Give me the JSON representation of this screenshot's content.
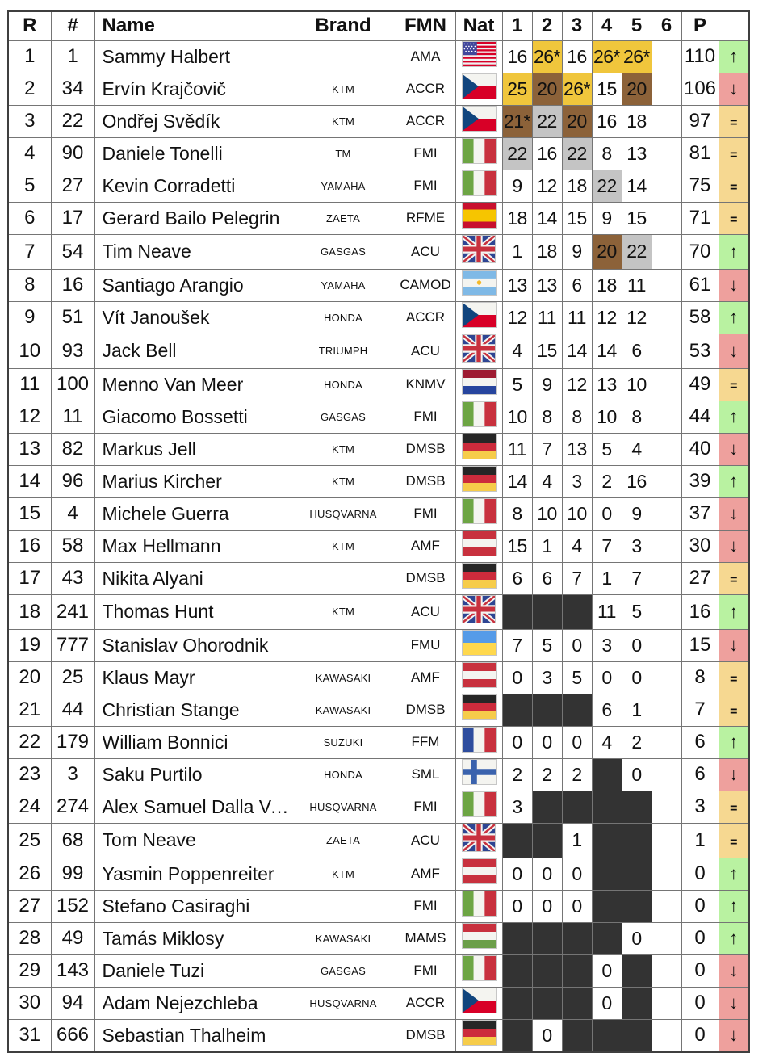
{
  "colors": {
    "gold": "#F0C63C",
    "silver": "#C4C4C4",
    "bronze": "#8C6239",
    "dns_dark": "#333333",
    "up_bg": "#B9F2A1",
    "down_bg": "#EEA09D",
    "equal_bg": "#F6D891"
  },
  "trend_symbols": {
    "up": "↑",
    "down": "↓",
    "equal": "="
  },
  "table": {
    "columns": [
      {
        "key": "rank",
        "label": "R"
      },
      {
        "key": "num",
        "label": "#"
      },
      {
        "key": "name",
        "label": "Name"
      },
      {
        "key": "brand",
        "label": "Brand"
      },
      {
        "key": "fmn",
        "label": "FMN"
      },
      {
        "key": "nat",
        "label": "Nat"
      },
      {
        "key": "race1",
        "label": "1"
      },
      {
        "key": "race2",
        "label": "2"
      },
      {
        "key": "race3",
        "label": "3"
      },
      {
        "key": "race4",
        "label": "4"
      },
      {
        "key": "race5",
        "label": "5"
      },
      {
        "key": "race6",
        "label": "6"
      },
      {
        "key": "points",
        "label": "P"
      },
      {
        "key": "trend",
        "label": ""
      }
    ],
    "rows": [
      {
        "rank": "1",
        "num": "1",
        "name": "Sammy Halbert",
        "brand": "",
        "fmn": "AMA",
        "nat": "US",
        "races": [
          [
            "16",
            ""
          ],
          [
            "26*",
            "g"
          ],
          [
            "16",
            ""
          ],
          [
            "26*",
            "g"
          ],
          [
            "26*",
            "g"
          ],
          [
            "",
            ""
          ]
        ],
        "points": "110",
        "trend": "up"
      },
      {
        "rank": "2",
        "num": "34",
        "name": "Ervín Krajčovič",
        "brand": "KTM",
        "fmn": "ACCR",
        "nat": "CZ",
        "races": [
          [
            "25",
            "g"
          ],
          [
            "20",
            "b"
          ],
          [
            "26*",
            "g"
          ],
          [
            "15",
            ""
          ],
          [
            "20",
            "b"
          ],
          [
            "",
            ""
          ]
        ],
        "points": "106",
        "trend": "down"
      },
      {
        "rank": "3",
        "num": "22",
        "name": "Ondřej Svědík",
        "brand": "KTM",
        "fmn": "ACCR",
        "nat": "CZ",
        "races": [
          [
            "21*",
            "b"
          ],
          [
            "22",
            "s"
          ],
          [
            "20",
            "b"
          ],
          [
            "16",
            ""
          ],
          [
            "18",
            ""
          ],
          [
            "",
            ""
          ]
        ],
        "points": "97",
        "trend": "equal"
      },
      {
        "rank": "4",
        "num": "90",
        "name": "Daniele Tonelli",
        "brand": "TM",
        "fmn": "FMI",
        "nat": "IT",
        "races": [
          [
            "22",
            "s"
          ],
          [
            "16",
            ""
          ],
          [
            "22",
            "s"
          ],
          [
            "8",
            ""
          ],
          [
            "13",
            ""
          ],
          [
            "",
            ""
          ]
        ],
        "points": "81",
        "trend": "equal"
      },
      {
        "rank": "5",
        "num": "27",
        "name": "Kevin Corradetti",
        "brand": "YAMAHA",
        "fmn": "FMI",
        "nat": "IT",
        "races": [
          [
            "9",
            ""
          ],
          [
            "12",
            ""
          ],
          [
            "18",
            ""
          ],
          [
            "22",
            "s"
          ],
          [
            "14",
            ""
          ],
          [
            "",
            ""
          ]
        ],
        "points": "75",
        "trend": "equal"
      },
      {
        "rank": "6",
        "num": "17",
        "name": "Gerard Bailo Pelegrin",
        "brand": "ZAETA",
        "fmn": "RFME",
        "nat": "ES",
        "races": [
          [
            "18",
            ""
          ],
          [
            "14",
            ""
          ],
          [
            "15",
            ""
          ],
          [
            "9",
            ""
          ],
          [
            "15",
            ""
          ],
          [
            "",
            ""
          ]
        ],
        "points": "71",
        "trend": "equal"
      },
      {
        "rank": "7",
        "num": "54",
        "name": "Tim Neave",
        "brand": "GASGAS",
        "fmn": "ACU",
        "nat": "GB",
        "races": [
          [
            "1",
            ""
          ],
          [
            "18",
            ""
          ],
          [
            "9",
            ""
          ],
          [
            "20",
            "b"
          ],
          [
            "22",
            "s"
          ],
          [
            "",
            ""
          ]
        ],
        "points": "70",
        "trend": "up"
      },
      {
        "rank": "8",
        "num": "16",
        "name": "Santiago Arangio",
        "brand": "YAMAHA",
        "fmn": "CAMOD",
        "nat": "AR",
        "races": [
          [
            "13",
            ""
          ],
          [
            "13",
            ""
          ],
          [
            "6",
            ""
          ],
          [
            "18",
            ""
          ],
          [
            "11",
            ""
          ],
          [
            "",
            ""
          ]
        ],
        "points": "61",
        "trend": "down"
      },
      {
        "rank": "9",
        "num": "51",
        "name": "Vít Janoušek",
        "brand": "HONDA",
        "fmn": "ACCR",
        "nat": "CZ",
        "races": [
          [
            "12",
            ""
          ],
          [
            "11",
            ""
          ],
          [
            "11",
            ""
          ],
          [
            "12",
            ""
          ],
          [
            "12",
            ""
          ],
          [
            "",
            ""
          ]
        ],
        "points": "58",
        "trend": "up"
      },
      {
        "rank": "10",
        "num": "93",
        "name": "Jack Bell",
        "brand": "TRIUMPH",
        "fmn": "ACU",
        "nat": "GB",
        "races": [
          [
            "4",
            ""
          ],
          [
            "15",
            ""
          ],
          [
            "14",
            ""
          ],
          [
            "14",
            ""
          ],
          [
            "6",
            ""
          ],
          [
            "",
            ""
          ]
        ],
        "points": "53",
        "trend": "down"
      },
      {
        "rank": "11",
        "num": "100",
        "name": "Menno Van Meer",
        "brand": "HONDA",
        "fmn": "KNMV",
        "nat": "NL",
        "races": [
          [
            "5",
            ""
          ],
          [
            "9",
            ""
          ],
          [
            "12",
            ""
          ],
          [
            "13",
            ""
          ],
          [
            "10",
            ""
          ],
          [
            "",
            ""
          ]
        ],
        "points": "49",
        "trend": "equal"
      },
      {
        "rank": "12",
        "num": "11",
        "name": "Giacomo Bossetti",
        "brand": "GASGAS",
        "fmn": "FMI",
        "nat": "IT",
        "races": [
          [
            "10",
            ""
          ],
          [
            "8",
            ""
          ],
          [
            "8",
            ""
          ],
          [
            "10",
            ""
          ],
          [
            "8",
            ""
          ],
          [
            "",
            ""
          ]
        ],
        "points": "44",
        "trend": "up"
      },
      {
        "rank": "13",
        "num": "82",
        "name": "Markus Jell",
        "brand": "KTM",
        "fmn": "DMSB",
        "nat": "DE",
        "races": [
          [
            "11",
            ""
          ],
          [
            "7",
            ""
          ],
          [
            "13",
            ""
          ],
          [
            "5",
            ""
          ],
          [
            "4",
            ""
          ],
          [
            "",
            ""
          ]
        ],
        "points": "40",
        "trend": "down"
      },
      {
        "rank": "14",
        "num": "96",
        "name": "Marius Kircher",
        "brand": "KTM",
        "fmn": "DMSB",
        "nat": "DE",
        "races": [
          [
            "14",
            ""
          ],
          [
            "4",
            ""
          ],
          [
            "3",
            ""
          ],
          [
            "2",
            ""
          ],
          [
            "16",
            ""
          ],
          [
            "",
            ""
          ]
        ],
        "points": "39",
        "trend": "up"
      },
      {
        "rank": "15",
        "num": "4",
        "name": "Michele Guerra",
        "brand": "HUSQVARNA",
        "fmn": "FMI",
        "nat": "IT",
        "races": [
          [
            "8",
            ""
          ],
          [
            "10",
            ""
          ],
          [
            "10",
            ""
          ],
          [
            "0",
            ""
          ],
          [
            "9",
            ""
          ],
          [
            "",
            ""
          ]
        ],
        "points": "37",
        "trend": "down"
      },
      {
        "rank": "16",
        "num": "58",
        "name": "Max Hellmann",
        "brand": "KTM",
        "fmn": "AMF",
        "nat": "AT",
        "races": [
          [
            "15",
            ""
          ],
          [
            "1",
            ""
          ],
          [
            "4",
            ""
          ],
          [
            "7",
            ""
          ],
          [
            "3",
            ""
          ],
          [
            "",
            ""
          ]
        ],
        "points": "30",
        "trend": "down"
      },
      {
        "rank": "17",
        "num": "43",
        "name": "Nikita Alyani",
        "brand": "",
        "fmn": "DMSB",
        "nat": "DE",
        "races": [
          [
            "6",
            ""
          ],
          [
            "6",
            ""
          ],
          [
            "7",
            ""
          ],
          [
            "1",
            ""
          ],
          [
            "7",
            ""
          ],
          [
            "",
            ""
          ]
        ],
        "points": "27",
        "trend": "equal"
      },
      {
        "rank": "18",
        "num": "241",
        "name": "Thomas Hunt",
        "brand": "KTM",
        "fmn": "ACU",
        "nat": "GB",
        "races": [
          [
            "",
            "d"
          ],
          [
            "",
            "d"
          ],
          [
            "",
            "d"
          ],
          [
            "11",
            ""
          ],
          [
            "5",
            ""
          ],
          [
            "",
            ""
          ]
        ],
        "points": "16",
        "trend": "up"
      },
      {
        "rank": "19",
        "num": "777",
        "name": "Stanislav Ohorodnik",
        "brand": "",
        "fmn": "FMU",
        "nat": "UA",
        "races": [
          [
            "7",
            ""
          ],
          [
            "5",
            ""
          ],
          [
            "0",
            ""
          ],
          [
            "3",
            ""
          ],
          [
            "0",
            ""
          ],
          [
            "",
            ""
          ]
        ],
        "points": "15",
        "trend": "down"
      },
      {
        "rank": "20",
        "num": "25",
        "name": "Klaus Mayr",
        "brand": "KAWASAKI",
        "fmn": "AMF",
        "nat": "AT",
        "races": [
          [
            "0",
            ""
          ],
          [
            "3",
            ""
          ],
          [
            "5",
            ""
          ],
          [
            "0",
            ""
          ],
          [
            "0",
            ""
          ],
          [
            "",
            ""
          ]
        ],
        "points": "8",
        "trend": "equal"
      },
      {
        "rank": "21",
        "num": "44",
        "name": "Christian Stange",
        "brand": "KAWASAKI",
        "fmn": "DMSB",
        "nat": "DE",
        "races": [
          [
            "",
            "d"
          ],
          [
            "",
            "d"
          ],
          [
            "",
            "d"
          ],
          [
            "6",
            ""
          ],
          [
            "1",
            ""
          ],
          [
            "",
            ""
          ]
        ],
        "points": "7",
        "trend": "equal"
      },
      {
        "rank": "22",
        "num": "179",
        "name": "William Bonnici",
        "brand": "SUZUKI",
        "fmn": "FFM",
        "nat": "FR",
        "races": [
          [
            "0",
            ""
          ],
          [
            "0",
            ""
          ],
          [
            "0",
            ""
          ],
          [
            "4",
            ""
          ],
          [
            "2",
            ""
          ],
          [
            "",
            ""
          ]
        ],
        "points": "6",
        "trend": "up"
      },
      {
        "rank": "23",
        "num": "3",
        "name": "Saku Purtilo",
        "brand": "HONDA",
        "fmn": "SML",
        "nat": "FI",
        "races": [
          [
            "2",
            ""
          ],
          [
            "2",
            ""
          ],
          [
            "2",
            ""
          ],
          [
            "",
            "d"
          ],
          [
            "0",
            ""
          ],
          [
            "",
            ""
          ]
        ],
        "points": "6",
        "trend": "down"
      },
      {
        "rank": "24",
        "num": "274",
        "name": "Alex Samuel Dalla Val…",
        "brand": "HUSQVARNA",
        "fmn": "FMI",
        "nat": "IT",
        "races": [
          [
            "3",
            ""
          ],
          [
            "",
            "d"
          ],
          [
            "",
            "d"
          ],
          [
            "",
            "d"
          ],
          [
            "",
            "d"
          ],
          [
            "",
            ""
          ]
        ],
        "points": "3",
        "trend": "equal"
      },
      {
        "rank": "25",
        "num": "68",
        "name": "Tom Neave",
        "brand": "ZAETA",
        "fmn": "ACU",
        "nat": "GB",
        "races": [
          [
            "",
            "d"
          ],
          [
            "",
            "d"
          ],
          [
            "1",
            ""
          ],
          [
            "",
            "d"
          ],
          [
            "",
            "d"
          ],
          [
            "",
            ""
          ]
        ],
        "points": "1",
        "trend": "equal"
      },
      {
        "rank": "26",
        "num": "99",
        "name": "Yasmin Poppenreiter",
        "brand": "KTM",
        "fmn": "AMF",
        "nat": "AT",
        "races": [
          [
            "0",
            ""
          ],
          [
            "0",
            ""
          ],
          [
            "0",
            ""
          ],
          [
            "",
            "d"
          ],
          [
            "",
            "d"
          ],
          [
            "",
            ""
          ]
        ],
        "points": "0",
        "trend": "up"
      },
      {
        "rank": "27",
        "num": "152",
        "name": "Stefano Casiraghi",
        "brand": "",
        "fmn": "FMI",
        "nat": "IT",
        "races": [
          [
            "0",
            ""
          ],
          [
            "0",
            ""
          ],
          [
            "0",
            ""
          ],
          [
            "",
            "d"
          ],
          [
            "",
            "d"
          ],
          [
            "",
            ""
          ]
        ],
        "points": "0",
        "trend": "up"
      },
      {
        "rank": "28",
        "num": "49",
        "name": "Tamás Miklosy",
        "brand": "KAWASAKI",
        "fmn": "MAMS",
        "nat": "HU",
        "races": [
          [
            "",
            "d"
          ],
          [
            "",
            "d"
          ],
          [
            "",
            "d"
          ],
          [
            "",
            "d"
          ],
          [
            "0",
            ""
          ],
          [
            "",
            ""
          ]
        ],
        "points": "0",
        "trend": "up"
      },
      {
        "rank": "29",
        "num": "143",
        "name": "Daniele Tuzi",
        "brand": "GASGAS",
        "fmn": "FMI",
        "nat": "IT",
        "races": [
          [
            "",
            "d"
          ],
          [
            "",
            "d"
          ],
          [
            "",
            "d"
          ],
          [
            "0",
            ""
          ],
          [
            "",
            "d"
          ],
          [
            "",
            ""
          ]
        ],
        "points": "0",
        "trend": "down"
      },
      {
        "rank": "30",
        "num": "94",
        "name": "Adam Nejezchleba",
        "brand": "HUSQVARNA",
        "fmn": "ACCR",
        "nat": "CZ",
        "races": [
          [
            "",
            "d"
          ],
          [
            "",
            "d"
          ],
          [
            "",
            "d"
          ],
          [
            "0",
            ""
          ],
          [
            "",
            "d"
          ],
          [
            "",
            ""
          ]
        ],
        "points": "0",
        "trend": "down"
      },
      {
        "rank": "31",
        "num": "666",
        "name": "Sebastian Thalheim",
        "brand": "",
        "fmn": "DMSB",
        "nat": "DE",
        "races": [
          [
            "",
            "d"
          ],
          [
            "0",
            ""
          ],
          [
            "",
            "d"
          ],
          [
            "",
            "d"
          ],
          [
            "",
            "d"
          ],
          [
            "",
            ""
          ]
        ],
        "points": "0",
        "trend": "down"
      }
    ]
  }
}
